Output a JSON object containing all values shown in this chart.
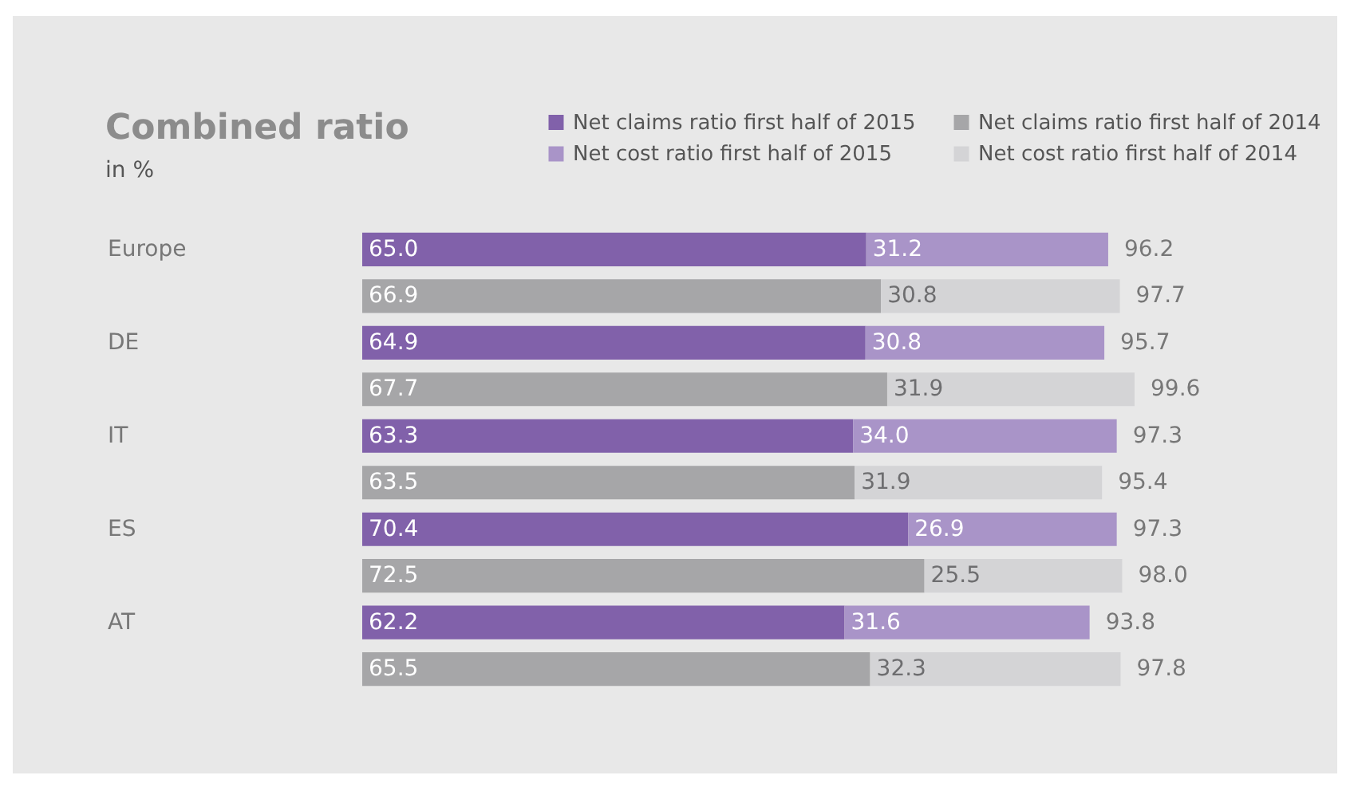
{
  "chart_data": {
    "type": "bar",
    "orientation": "horizontal",
    "stacked": true,
    "title": "Combined ratio",
    "subtitle": "in %",
    "categories": [
      "Europe",
      null,
      "DE",
      null,
      "IT",
      null,
      "ES",
      null,
      "AT",
      null
    ],
    "series": [
      {
        "name": "Net claims ratio first half of 2015",
        "color": "#8161aa",
        "values": [
          65.0,
          null,
          64.9,
          null,
          63.3,
          null,
          70.4,
          null,
          62.2,
          null
        ],
        "value_labels": [
          "65.0",
          null,
          "64.9",
          null,
          "63.3",
          null,
          "70.4",
          null,
          "62.2",
          null
        ]
      },
      {
        "name": "Net cost ratio first half of 2015",
        "color": "#a994c8",
        "values": [
          31.2,
          null,
          30.8,
          null,
          34.0,
          null,
          26.9,
          null,
          31.6,
          null
        ],
        "value_labels": [
          "31.2",
          null,
          "30.8",
          null,
          "34.0",
          null,
          "26.9",
          null,
          "31.6",
          null
        ]
      },
      {
        "name": "Net claims ratio first half of 2014",
        "color": "#a6a6a8",
        "values": [
          null,
          66.9,
          null,
          67.7,
          null,
          63.5,
          null,
          72.5,
          null,
          65.5
        ],
        "value_labels": [
          null,
          "66.9",
          null,
          "67.7",
          null,
          "63.5",
          null,
          "72.5",
          null,
          "65.5"
        ]
      },
      {
        "name": "Net cost ratio first half of 2014",
        "color": "#d4d4d6",
        "values": [
          null,
          30.8,
          null,
          31.9,
          null,
          31.9,
          null,
          25.5,
          null,
          32.3
        ],
        "value_labels": [
          null,
          "30.8",
          null,
          "31.9",
          null,
          "31.9",
          null,
          "25.5",
          null,
          "32.3"
        ]
      }
    ],
    "totals": [
      "96.2",
      "97.7",
      "95.7",
      "99.6",
      "97.3",
      "95.4",
      "97.3",
      "98.0",
      "93.8",
      "97.8"
    ],
    "legend": "top right"
  }
}
